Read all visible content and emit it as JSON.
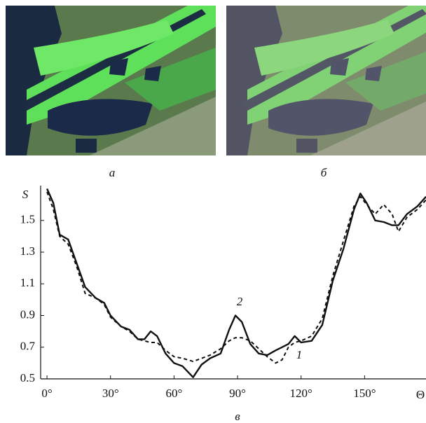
{
  "images": [
    {
      "caption": "а"
    },
    {
      "caption": "б"
    }
  ],
  "chart_data": {
    "type": "line",
    "caption": "в",
    "ylabel": "S",
    "xlabel": "Θ",
    "x": [
      0,
      3,
      6,
      10,
      14,
      18,
      23,
      27,
      30,
      35,
      39,
      43,
      46,
      49,
      52,
      56,
      60,
      64,
      69,
      73,
      77,
      82,
      86,
      89,
      92,
      96,
      100,
      104,
      108,
      111,
      114,
      117,
      120,
      125,
      130,
      135,
      140,
      145,
      148,
      151,
      155,
      159,
      163,
      166,
      170,
      175,
      179
    ],
    "series": [
      {
        "name": "1",
        "color": "#111111",
        "dash": true,
        "values": [
          1.68,
          1.57,
          1.4,
          1.35,
          1.21,
          1.04,
          1.01,
          0.97,
          0.89,
          0.83,
          0.8,
          0.75,
          0.74,
          0.73,
          0.73,
          0.68,
          0.64,
          0.63,
          0.61,
          0.63,
          0.65,
          0.69,
          0.74,
          0.76,
          0.76,
          0.74,
          0.69,
          0.64,
          0.6,
          0.62,
          0.7,
          0.73,
          0.74,
          0.77,
          0.88,
          1.15,
          1.37,
          1.59,
          1.65,
          1.6,
          1.54,
          1.6,
          1.54,
          1.43,
          1.52,
          1.57,
          1.63
        ]
      },
      {
        "name": "2",
        "color": "#111111",
        "dash": false,
        "values": [
          1.7,
          1.61,
          1.41,
          1.38,
          1.23,
          1.08,
          1.01,
          0.98,
          0.9,
          0.83,
          0.81,
          0.75,
          0.75,
          0.8,
          0.77,
          0.66,
          0.6,
          0.58,
          0.51,
          0.59,
          0.63,
          0.66,
          0.81,
          0.9,
          0.86,
          0.72,
          0.66,
          0.65,
          0.68,
          0.7,
          0.72,
          0.77,
          0.73,
          0.74,
          0.84,
          1.12,
          1.32,
          1.57,
          1.67,
          1.61,
          1.5,
          1.49,
          1.47,
          1.47,
          1.54,
          1.59,
          1.65
        ]
      }
    ],
    "xlim": [
      -3,
      179
    ],
    "ylim": [
      0.5,
      1.72
    ],
    "xticks": [
      {
        "value": 0,
        "label": "0°"
      },
      {
        "value": 30,
        "label": "30°"
      },
      {
        "value": 60,
        "label": "60°"
      },
      {
        "value": 90,
        "label": "90°"
      },
      {
        "value": 120,
        "label": "120°"
      },
      {
        "value": 150,
        "label": "150°"
      }
    ],
    "yticks": [
      0.5,
      0.7,
      0.9,
      1.1,
      1.3,
      1.5
    ]
  }
}
